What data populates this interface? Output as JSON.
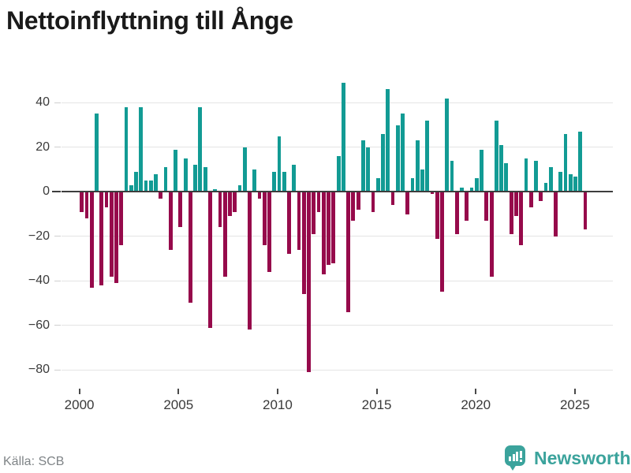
{
  "title": "Nettoinflyttning till Ånge",
  "footer": {
    "source": "Källa: SCB"
  },
  "branding": {
    "name": "Newsworthy",
    "icon": "newsworthy-speech-bubble-bar-chart-icon"
  },
  "colors": {
    "positive": "#129B94",
    "negative": "#960A4B",
    "brand": "#3BA39C",
    "gridline": "#E4E4E4",
    "zero_line": "#3D3D3D",
    "title_text": "#1A1A1A",
    "axis_text": "#3A3A3A",
    "source_text": "#7F8487"
  },
  "chart_data": {
    "type": "bar",
    "title": "Nettoinflyttning till Ånge",
    "source": "Källa: SCB",
    "frequency": "quarterly",
    "period_start": "2000-Q1",
    "period_end": "2025-Q3",
    "values": [
      -9,
      -12,
      -43,
      35,
      -42,
      -7,
      -38,
      -41,
      -24,
      38,
      3,
      9,
      38,
      5,
      5,
      8,
      -3,
      11,
      -26,
      19,
      -16,
      15,
      -50,
      12,
      38,
      11,
      -61,
      1,
      -16,
      -38,
      -11,
      -9,
      3,
      20,
      -62,
      10,
      -3,
      -24,
      -36,
      9,
      25,
      9,
      -28,
      12,
      -26,
      -46,
      -81,
      -19,
      -9,
      -37,
      -33,
      -32,
      16,
      49,
      -54,
      -13,
      -8,
      23,
      20,
      -9,
      6,
      26,
      46,
      -6,
      30,
      35,
      -10,
      6,
      23,
      10,
      32,
      -1,
      -21,
      -45,
      42,
      14,
      -19,
      2,
      -13,
      2,
      6,
      19,
      -13,
      -38,
      32,
      21,
      13,
      -19,
      -11,
      -24,
      15,
      -7,
      14,
      -4,
      4,
      11,
      -20,
      9,
      26,
      8,
      7,
      27,
      -17
    ],
    "x_ticks": [
      2000,
      2005,
      2010,
      2015,
      2020,
      2025
    ],
    "x_tick_labels": [
      "2000",
      "2005",
      "2010",
      "2015",
      "2020",
      "2025"
    ],
    "y_ticks": [
      40,
      20,
      0,
      -20,
      -40,
      -60,
      -80
    ],
    "y_tick_labels": [
      "40",
      "20",
      "0",
      "−20",
      "−40",
      "−60",
      "−80"
    ],
    "ylim": [
      -87,
      56
    ],
    "grid": "horizontal",
    "legend": "none"
  }
}
